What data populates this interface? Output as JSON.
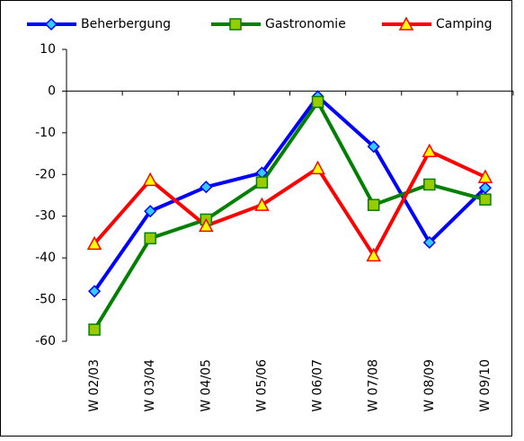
{
  "chart_data": {
    "type": "line",
    "categories": [
      "W 02/03",
      "W 03/04",
      "W 04/05",
      "W 05/06",
      "W 06/07",
      "W 07/08",
      "W 08/09",
      "W 09/10"
    ],
    "series": [
      {
        "name": "Beherbergung",
        "color": "#0000ff",
        "marker": "diamond",
        "marker_color": "#33ccff",
        "values": [
          -48,
          -28.8,
          -23,
          -19.6,
          -1.3,
          -13.3,
          -36.3,
          -23.2
        ]
      },
      {
        "name": "Gastronomie",
        "color": "#008000",
        "marker": "square",
        "marker_color": "#99cc00",
        "values": [
          -57.2,
          -35.3,
          -30.8,
          -21.9,
          -2.6,
          -27.3,
          -22.4,
          -26
        ]
      },
      {
        "name": "Camping",
        "color": "#ff0000",
        "marker": "triangle",
        "marker_color": "#ffff00",
        "values": [
          -36.6,
          -21.3,
          -32.3,
          -27.3,
          -18.5,
          -39.4,
          -14.4,
          -20.6
        ]
      }
    ],
    "ylim": [
      -60,
      10
    ],
    "yticks": [
      10,
      0,
      -10,
      -20,
      -30,
      -40,
      -50,
      -60
    ],
    "legend": "top"
  }
}
